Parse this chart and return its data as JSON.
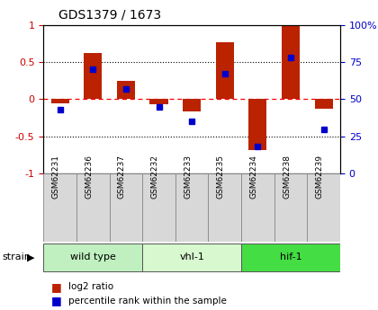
{
  "title": "GDS1379 / 1673",
  "samples": [
    "GSM62231",
    "GSM62236",
    "GSM62237",
    "GSM62232",
    "GSM62233",
    "GSM62235",
    "GSM62234",
    "GSM62238",
    "GSM62239"
  ],
  "log2_ratio": [
    -0.05,
    0.62,
    0.25,
    -0.07,
    -0.17,
    0.76,
    -0.68,
    0.98,
    -0.13
  ],
  "percentile": [
    43,
    70,
    57,
    45,
    35,
    67,
    18,
    78,
    30
  ],
  "groups": [
    {
      "label": "wild type",
      "start": 0,
      "end": 3,
      "color": "#c0f0c0"
    },
    {
      "label": "vhl-1",
      "start": 3,
      "end": 6,
      "color": "#d8f8d0"
    },
    {
      "label": "hif-1",
      "start": 6,
      "end": 9,
      "color": "#44dd44"
    }
  ],
  "bar_color_red": "#bb2200",
  "bar_color_blue": "#0000cc",
  "ylim_left": [
    -1,
    1
  ],
  "ylim_right": [
    0,
    100
  ],
  "yticks_left": [
    -1,
    -0.5,
    0,
    0.5,
    1
  ],
  "yticks_right": [
    0,
    25,
    50,
    75,
    100
  ],
  "tick_color_left": "#cc0000",
  "tick_color_right": "#0000cc",
  "legend_red_label": "log2 ratio",
  "legend_blue_label": "percentile rank within the sample",
  "strain_label": "strain"
}
